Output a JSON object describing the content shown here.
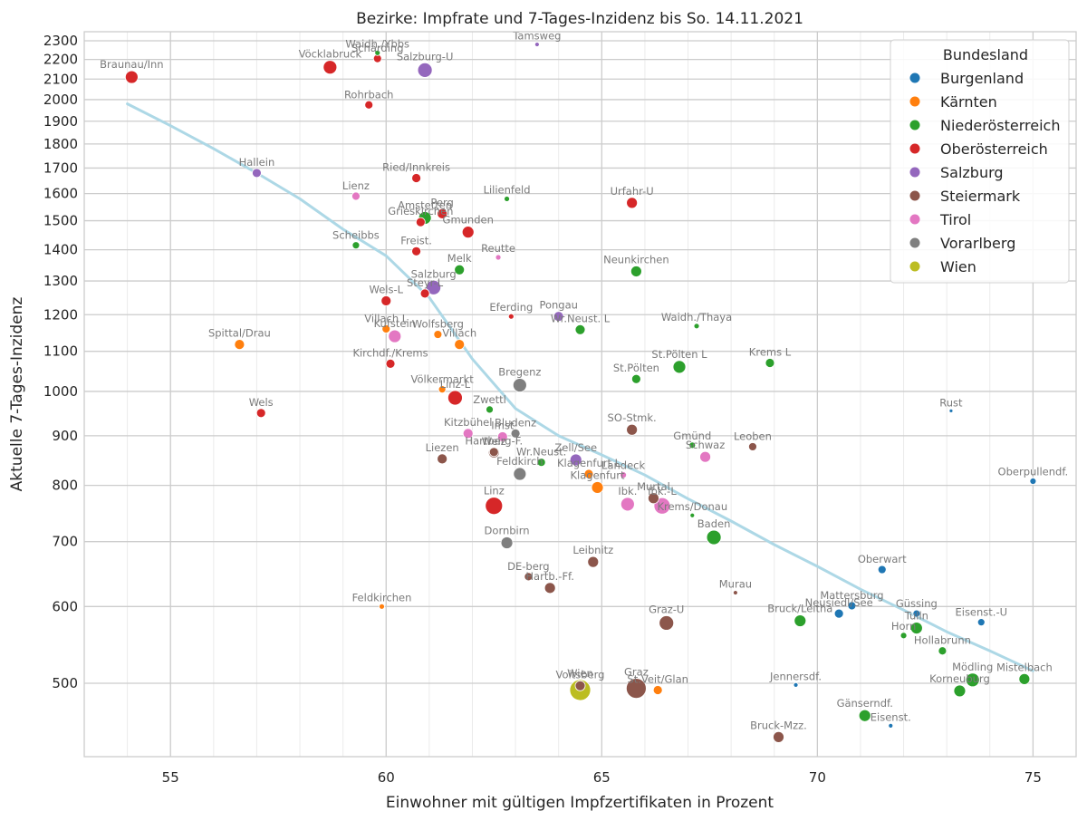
{
  "chart_data": {
    "type": "scatter",
    "title": "Bezirke: Impfrate und 7-Tages-Inzidenz bis So. 14.11.2021",
    "xlabel": "Einwohner mit gültigen Impfzertifikaten in Prozent",
    "ylabel": "Aktuelle 7-Tages-Inzidenz",
    "xlim": [
      53,
      76
    ],
    "ylim": [
      420,
      2350
    ],
    "yscale": "log",
    "grid": true,
    "legend_placement": "top-right",
    "x_ticks": [
      55,
      60,
      65,
      70,
      75
    ],
    "y_ticks": [
      500,
      600,
      700,
      800,
      900,
      1000,
      1100,
      1200,
      1300,
      1400,
      1500,
      1600,
      1700,
      1800,
      1900,
      2000,
      2100,
      2200,
      2300
    ],
    "legend": {
      "title": "Bundesland",
      "entries": [
        {
          "name": "Burgenland",
          "color": "#1f77b4"
        },
        {
          "name": "Kärnten",
          "color": "#ff7f0e"
        },
        {
          "name": "Niederösterreich",
          "color": "#2ca02c"
        },
        {
          "name": "Oberösterreich",
          "color": "#d62728"
        },
        {
          "name": "Salzburg",
          "color": "#9467bd"
        },
        {
          "name": "Steiermark",
          "color": "#8c564b"
        },
        {
          "name": "Tirol",
          "color": "#e377c2"
        },
        {
          "name": "Vorarlberg",
          "color": "#7f7f7f"
        },
        {
          "name": "Wien",
          "color": "#bcbd22"
        }
      ]
    },
    "trend": {
      "color": "#add8e6",
      "points": [
        [
          54.0,
          1980
        ],
        [
          55.0,
          1880
        ],
        [
          56.0,
          1780
        ],
        [
          57.0,
          1680
        ],
        [
          58.0,
          1580
        ],
        [
          59.0,
          1470
        ],
        [
          60.0,
          1380
        ],
        [
          61.0,
          1250
        ],
        [
          62.0,
          1080
        ],
        [
          63.0,
          960
        ],
        [
          64.0,
          900
        ],
        [
          65.0,
          860
        ],
        [
          66.0,
          820
        ],
        [
          67.0,
          775
        ],
        [
          68.0,
          735
        ],
        [
          69.0,
          695
        ],
        [
          70.0,
          660
        ],
        [
          71.0,
          625
        ],
        [
          72.0,
          595
        ],
        [
          73.0,
          565
        ],
        [
          74.0,
          540
        ],
        [
          75.0,
          515
        ]
      ]
    },
    "points": [
      {
        "label": "Braunau/Inn",
        "state": "Oberösterreich",
        "x": 54.1,
        "y": 2110,
        "r": 7
      },
      {
        "label": "Vöcklabruck",
        "state": "Oberösterreich",
        "x": 58.7,
        "y": 2160,
        "r": 7.5
      },
      {
        "label": "Waidh./Ybbs",
        "state": "Niederösterreich",
        "x": 59.8,
        "y": 2235,
        "r": 3
      },
      {
        "label": "Schärding",
        "state": "Oberösterreich",
        "x": 59.8,
        "y": 2205,
        "r": 4.5
      },
      {
        "label": "Salzburg-U",
        "state": "Salzburg",
        "x": 60.9,
        "y": 2145,
        "r": 8
      },
      {
        "label": "Tamsweg",
        "state": "Salzburg",
        "x": 63.5,
        "y": 2280,
        "r": 2.5
      },
      {
        "label": "Rohrbach",
        "state": "Oberösterreich",
        "x": 59.6,
        "y": 1975,
        "r": 4.5
      },
      {
        "label": "Hallein",
        "state": "Salzburg",
        "x": 57.0,
        "y": 1680,
        "r": 5
      },
      {
        "label": "Ried/Innkreis",
        "state": "Oberösterreich",
        "x": 60.7,
        "y": 1660,
        "r": 5
      },
      {
        "label": "Urfahr-U",
        "state": "Oberösterreich",
        "x": 65.7,
        "y": 1565,
        "r": 6
      },
      {
        "label": "Lienz",
        "state": "Tirol",
        "x": 59.3,
        "y": 1590,
        "r": 4.5
      },
      {
        "label": "Lilienfeld",
        "state": "Niederösterreich",
        "x": 62.8,
        "y": 1580,
        "r": 3
      },
      {
        "label": "Perg",
        "state": "Oberösterreich",
        "x": 61.3,
        "y": 1525,
        "r": 5.5
      },
      {
        "label": "Amstetten",
        "state": "Niederösterreich",
        "x": 60.9,
        "y": 1510,
        "r": 7
      },
      {
        "label": "Grieskirchen",
        "state": "Oberösterreich",
        "x": 60.8,
        "y": 1495,
        "r": 5
      },
      {
        "label": "Gmunden",
        "state": "Oberösterreich",
        "x": 61.9,
        "y": 1460,
        "r": 6.5
      },
      {
        "label": "Scheibbs",
        "state": "Niederösterreich",
        "x": 59.3,
        "y": 1415,
        "r": 4
      },
      {
        "label": "Freist.",
        "state": "Oberösterreich",
        "x": 60.7,
        "y": 1395,
        "r": 5
      },
      {
        "label": "Reutte",
        "state": "Tirol",
        "x": 62.6,
        "y": 1375,
        "r": 3
      },
      {
        "label": "Melk",
        "state": "Niederösterreich",
        "x": 61.7,
        "y": 1335,
        "r": 5.5
      },
      {
        "label": "Neunkirchen",
        "state": "Niederösterreich",
        "x": 65.8,
        "y": 1330,
        "r": 6
      },
      {
        "label": "Salzburg",
        "state": "Salzburg",
        "x": 61.1,
        "y": 1280,
        "r": 8
      },
      {
        "label": "Steyr-L",
        "state": "Oberösterreich",
        "x": 60.9,
        "y": 1262,
        "r": 5
      },
      {
        "label": "Wels-L",
        "state": "Oberösterreich",
        "x": 60.0,
        "y": 1240,
        "r": 5.5
      },
      {
        "label": "Eferding",
        "state": "Oberösterreich",
        "x": 62.9,
        "y": 1195,
        "r": 3
      },
      {
        "label": "Pongau",
        "state": "Salzburg",
        "x": 64.0,
        "y": 1195,
        "r": 5.5
      },
      {
        "label": "Wr.Neust. L",
        "state": "Niederösterreich",
        "x": 64.5,
        "y": 1158,
        "r": 5.5
      },
      {
        "label": "Waidh./Thaya",
        "state": "Niederösterreich",
        "x": 67.2,
        "y": 1168,
        "r": 3
      },
      {
        "label": "Villach L",
        "state": "Kärnten",
        "x": 60.0,
        "y": 1160,
        "r": 4.5
      },
      {
        "label": "Kufstein",
        "state": "Tirol",
        "x": 60.2,
        "y": 1140,
        "r": 7
      },
      {
        "label": "Wolfsberg",
        "state": "Kärnten",
        "x": 61.2,
        "y": 1145,
        "r": 4.5
      },
      {
        "label": "Spittal/Drau",
        "state": "Kärnten",
        "x": 56.6,
        "y": 1118,
        "r": 5.5
      },
      {
        "label": "Villach",
        "state": "Kärnten",
        "x": 61.7,
        "y": 1118,
        "r": 5.5
      },
      {
        "label": "Kirchdf./Krems",
        "state": "Oberösterreich",
        "x": 60.1,
        "y": 1068,
        "r": 5
      },
      {
        "label": "St.Pölten L",
        "state": "Niederösterreich",
        "x": 66.8,
        "y": 1060,
        "r": 7
      },
      {
        "label": "Krems L",
        "state": "Niederösterreich",
        "x": 68.9,
        "y": 1070,
        "r": 5
      },
      {
        "label": "St.Pölten",
        "state": "Niederösterreich",
        "x": 65.8,
        "y": 1030,
        "r": 5
      },
      {
        "label": "Bregenz",
        "state": "Vorarlberg",
        "x": 63.1,
        "y": 1015,
        "r": 7.5
      },
      {
        "label": "Völkermarkt",
        "state": "Kärnten",
        "x": 61.3,
        "y": 1005,
        "r": 4
      },
      {
        "label": "Linz-L",
        "state": "Oberösterreich",
        "x": 61.6,
        "y": 985,
        "r": 8
      },
      {
        "label": "Wels",
        "state": "Oberösterreich",
        "x": 57.1,
        "y": 950,
        "r": 5
      },
      {
        "label": "Zwettl",
        "state": "Niederösterreich",
        "x": 62.4,
        "y": 958,
        "r": 4
      },
      {
        "label": "Rust",
        "state": "Burgenland",
        "x": 73.1,
        "y": 955,
        "r": 2
      },
      {
        "label": "Kitzbühel",
        "state": "Tirol",
        "x": 61.9,
        "y": 905,
        "r": 5.5
      },
      {
        "label": "Imst",
        "state": "Tirol",
        "x": 62.7,
        "y": 898,
        "r": 5.5
      },
      {
        "label": "Bludenz",
        "state": "Vorarlberg",
        "x": 63.0,
        "y": 905,
        "r": 5
      },
      {
        "label": "SO-Stmk.",
        "state": "Steiermark",
        "x": 65.7,
        "y": 913,
        "r": 6
      },
      {
        "label": "Gmünd",
        "state": "Niederösterreich",
        "x": 67.1,
        "y": 880,
        "r": 3.5
      },
      {
        "label": "Leoben",
        "state": "Steiermark",
        "x": 68.5,
        "y": 877,
        "r": 4.5
      },
      {
        "label": "Schwaz",
        "state": "Tirol",
        "x": 67.4,
        "y": 856,
        "r": 6
      },
      {
        "label": "Hartberg-F.",
        "state": "Steiermark",
        "x": 62.5,
        "y": 865,
        "r": 6
      },
      {
        "label": "Liezen",
        "state": "Steiermark",
        "x": 61.3,
        "y": 852,
        "r": 5.5
      },
      {
        "label": "Weiz",
        "state": "Steiermark",
        "x": 62.5,
        "y": 866,
        "r": 5
      },
      {
        "label": "Zell/See",
        "state": "Salzburg",
        "x": 64.4,
        "y": 850,
        "r": 6.5
      },
      {
        "label": "Wr.Neust.",
        "state": "Niederösterreich",
        "x": 63.6,
        "y": 845,
        "r": 4.5
      },
      {
        "label": "Feldkirch",
        "state": "Vorarlberg",
        "x": 63.1,
        "y": 822,
        "r": 7
      },
      {
        "label": "Klagenfurt L",
        "state": "Kärnten",
        "x": 64.7,
        "y": 822,
        "r": 5
      },
      {
        "label": "Landeck",
        "state": "Tirol",
        "x": 65.5,
        "y": 820,
        "r": 3.5
      },
      {
        "label": "Oberpullendf.",
        "state": "Burgenland",
        "x": 75.0,
        "y": 808,
        "r": 3.5
      },
      {
        "label": "Klagenfurt",
        "state": "Kärnten",
        "x": 64.9,
        "y": 796,
        "r": 6.5
      },
      {
        "label": "Murtal",
        "state": "Steiermark",
        "x": 66.2,
        "y": 776,
        "r": 6
      },
      {
        "label": "Ibk.-L",
        "state": "Tirol",
        "x": 66.4,
        "y": 762,
        "r": 9
      },
      {
        "label": "Ibk.",
        "state": "Tirol",
        "x": 65.6,
        "y": 765,
        "r": 7.5
      },
      {
        "label": "Linz",
        "state": "Oberösterreich",
        "x": 62.5,
        "y": 762,
        "r": 9.5
      },
      {
        "label": "Krems/Donau",
        "state": "Niederösterreich",
        "x": 67.1,
        "y": 745,
        "r": 2.5
      },
      {
        "label": "Baden",
        "state": "Niederösterreich",
        "x": 67.6,
        "y": 707,
        "r": 8
      },
      {
        "label": "Dornbirn",
        "state": "Vorarlberg",
        "x": 62.8,
        "y": 698,
        "r": 6.5
      },
      {
        "label": "Leibnitz",
        "state": "Steiermark",
        "x": 64.8,
        "y": 667,
        "r": 6
      },
      {
        "label": "Oberwart",
        "state": "Burgenland",
        "x": 71.5,
        "y": 655,
        "r": 4.5
      },
      {
        "label": "DE-berg",
        "state": "Steiermark",
        "x": 63.3,
        "y": 644,
        "r": 4.5
      },
      {
        "label": "Hartb.-Ff.",
        "state": "Steiermark",
        "x": 63.8,
        "y": 627,
        "r": 6
      },
      {
        "label": "Murau",
        "state": "Steiermark",
        "x": 68.1,
        "y": 620,
        "r": 2.5
      },
      {
        "label": "Mattersburg",
        "state": "Burgenland",
        "x": 70.8,
        "y": 601,
        "r": 4.5
      },
      {
        "label": "Feldkirchen",
        "state": "Kärnten",
        "x": 59.9,
        "y": 600,
        "r": 3
      },
      {
        "label": "Neusiedl/See",
        "state": "Burgenland",
        "x": 70.5,
        "y": 590,
        "r": 5
      },
      {
        "label": "Güssing",
        "state": "Burgenland",
        "x": 72.3,
        "y": 590,
        "r": 4
      },
      {
        "label": "Bruck/Leitha",
        "state": "Niederösterreich",
        "x": 69.6,
        "y": 580,
        "r": 6.5
      },
      {
        "label": "Graz-U",
        "state": "Steiermark",
        "x": 66.5,
        "y": 577,
        "r": 8
      },
      {
        "label": "Eisenst.-U",
        "state": "Burgenland",
        "x": 73.8,
        "y": 578,
        "r": 4
      },
      {
        "label": "Tulln",
        "state": "Niederösterreich",
        "x": 72.3,
        "y": 570,
        "r": 6.5
      },
      {
        "label": "Horn",
        "state": "Niederösterreich",
        "x": 72.0,
        "y": 560,
        "r": 3.5
      },
      {
        "label": "Hollabrunn",
        "state": "Niederösterreich",
        "x": 72.9,
        "y": 540,
        "r": 4.5
      },
      {
        "label": "Mistelbach",
        "state": "Niederösterreich",
        "x": 74.8,
        "y": 505,
        "r": 6
      },
      {
        "label": "Mödling",
        "state": "Niederösterreich",
        "x": 73.6,
        "y": 504,
        "r": 7.5
      },
      {
        "label": "Korneuburg",
        "state": "Niederösterreich",
        "x": 73.3,
        "y": 491,
        "r": 6.5
      },
      {
        "label": "Jennersdf.",
        "state": "Burgenland",
        "x": 69.5,
        "y": 498,
        "r": 2.5
      },
      {
        "label": "St.Veit/Glan",
        "state": "Kärnten",
        "x": 66.3,
        "y": 492,
        "r": 5
      },
      {
        "label": "Graz",
        "state": "Steiermark",
        "x": 65.8,
        "y": 494,
        "r": 11
      },
      {
        "label": "Wien",
        "state": "Wien",
        "x": 64.5,
        "y": 492,
        "r": 11.5
      },
      {
        "label": "Voitsberg",
        "state": "Steiermark",
        "x": 64.5,
        "y": 497,
        "r": 5.5
      },
      {
        "label": "Gänserndf.",
        "state": "Niederösterreich",
        "x": 71.1,
        "y": 463,
        "r": 6.5
      },
      {
        "label": "Eisenst.",
        "state": "Burgenland",
        "x": 71.7,
        "y": 452,
        "r": 2.5
      },
      {
        "label": "Bruck-Mzz.",
        "state": "Steiermark",
        "x": 69.1,
        "y": 440,
        "r": 6
      }
    ]
  }
}
